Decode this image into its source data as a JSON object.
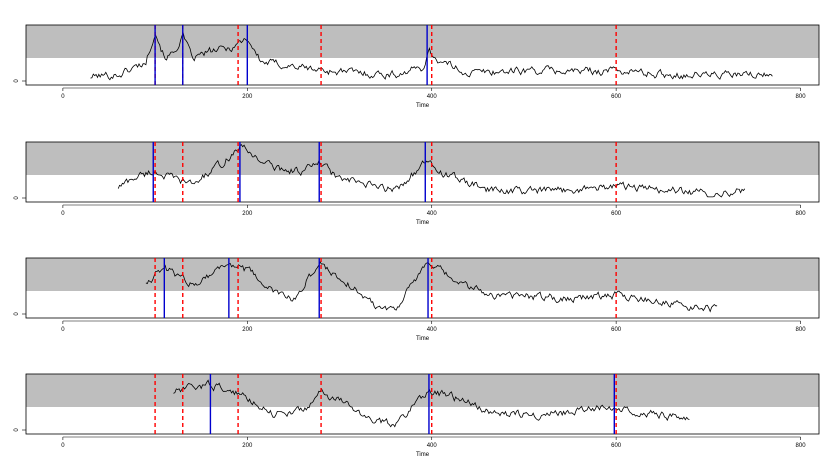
{
  "chart_data": [
    {
      "type": "line",
      "xlabel": "Time",
      "xlim": [
        -40,
        820
      ],
      "xticks": [
        0,
        200,
        400,
        600,
        800
      ],
      "yticks": [
        0
      ],
      "shaded_band": {
        "from": 0.45,
        "to": 1.0
      },
      "series": [
        {
          "x_start": 30,
          "x_end": 770
        }
      ],
      "red_dashed_lines": [
        100,
        130,
        190,
        280,
        400,
        600
      ],
      "blue_lines": [
        100,
        130,
        200,
        395
      ]
    },
    {
      "type": "line",
      "xlabel": "Time",
      "xlim": [
        -40,
        820
      ],
      "xticks": [
        0,
        200,
        400,
        600,
        800
      ],
      "yticks": [
        0
      ],
      "shaded_band": {
        "from": 0.45,
        "to": 1.0
      },
      "series": [
        {
          "x_start": 60,
          "x_end": 740
        }
      ],
      "red_dashed_lines": [
        100,
        130,
        190,
        280,
        400,
        600
      ],
      "blue_lines": [
        98,
        192,
        278,
        393
      ]
    },
    {
      "type": "line",
      "xlabel": "Time",
      "xlim": [
        -40,
        820
      ],
      "xticks": [
        0,
        200,
        400,
        600,
        800
      ],
      "yticks": [
        0
      ],
      "shaded_band": {
        "from": 0.45,
        "to": 1.0
      },
      "series": [
        {
          "x_start": 90,
          "x_end": 710
        }
      ],
      "red_dashed_lines": [
        100,
        130,
        190,
        280,
        400,
        600
      ],
      "blue_lines": [
        110,
        180,
        278,
        396
      ]
    },
    {
      "type": "line",
      "xlabel": "Time",
      "xlim": [
        -40,
        820
      ],
      "xticks": [
        0,
        200,
        400,
        600,
        800
      ],
      "yticks": [
        0
      ],
      "shaded_band": {
        "from": 0.45,
        "to": 1.0
      },
      "series": [
        {
          "x_start": 120,
          "x_end": 680
        }
      ],
      "red_dashed_lines": [
        100,
        130,
        190,
        280,
        400,
        600
      ],
      "blue_lines": [
        160,
        397,
        598
      ]
    }
  ],
  "colors": {
    "band": "#bebebe",
    "series": "#000000",
    "red_lines": "#ff0000",
    "blue_lines": "#0000cd"
  }
}
